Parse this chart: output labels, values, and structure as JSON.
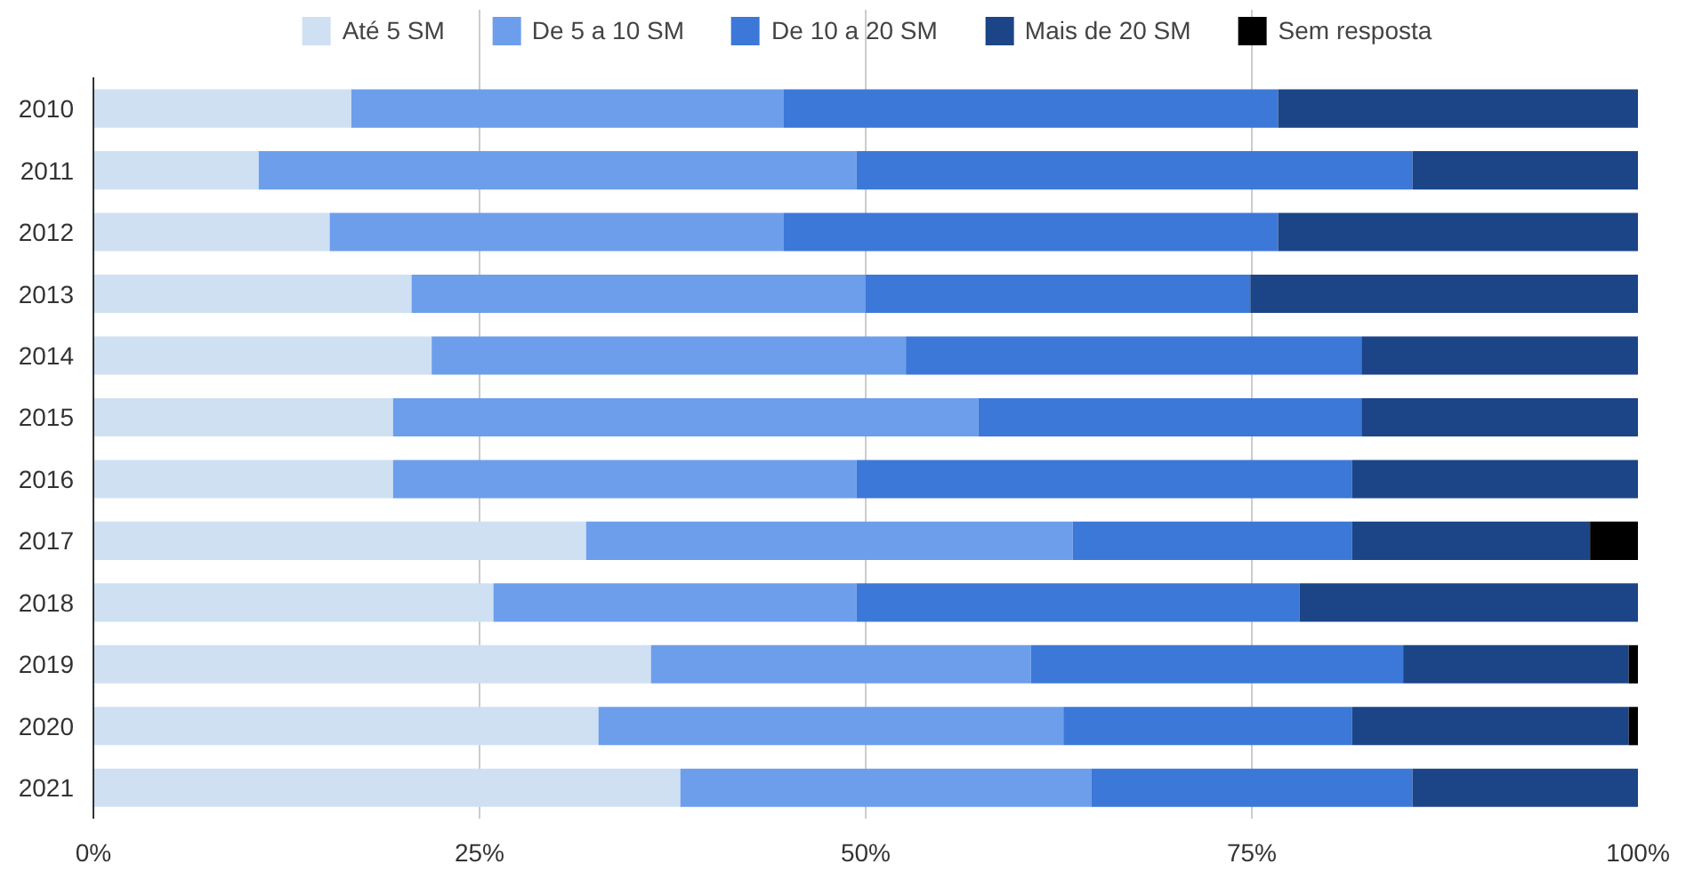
{
  "chart_data": {
    "type": "bar",
    "orientation": "horizontal",
    "stacked": true,
    "legend": "top",
    "grid": "x",
    "categories": [
      "2010",
      "2011",
      "2012",
      "2013",
      "2014",
      "2015",
      "2016",
      "2017",
      "2018",
      "2019",
      "2020",
      "2021"
    ],
    "xlim": [
      0,
      100
    ],
    "xticks": [
      {
        "value": 0,
        "label": "0%"
      },
      {
        "value": 25,
        "label": "25%"
      },
      {
        "value": 50,
        "label": "50%"
      },
      {
        "value": 75,
        "label": "75%"
      },
      {
        "value": 100,
        "label": "100%"
      }
    ],
    "series": [
      {
        "name": "Até 5 SM",
        "color": "#cfe0f3",
        "values": [
          16.7,
          10.7,
          15.3,
          20.6,
          21.9,
          19.4,
          19.4,
          31.9,
          25.9,
          36.1,
          32.7,
          38.0
        ]
      },
      {
        "name": "De 5 a 10 SM",
        "color": "#6d9eeb",
        "values": [
          28.0,
          38.7,
          29.4,
          29.4,
          30.7,
          37.9,
          30.0,
          31.5,
          23.5,
          24.6,
          30.1,
          26.6
        ]
      },
      {
        "name": "De 10 a 20 SM",
        "color": "#3c78d8",
        "values": [
          32.0,
          36.0,
          32.0,
          24.9,
          29.5,
          24.8,
          32.1,
          18.1,
          28.7,
          24.1,
          18.7,
          20.8
        ]
      },
      {
        "name": "Mais de 20 SM",
        "color": "#1c4587",
        "values": [
          23.3,
          14.6,
          23.3,
          25.1,
          17.9,
          17.9,
          18.5,
          15.4,
          21.9,
          14.6,
          17.9,
          14.6
        ]
      },
      {
        "name": "Sem resposta",
        "color": "#000000",
        "values": [
          0,
          0,
          0,
          0,
          0,
          0,
          0,
          3.1,
          0,
          0.6,
          0.6,
          0
        ]
      }
    ]
  }
}
